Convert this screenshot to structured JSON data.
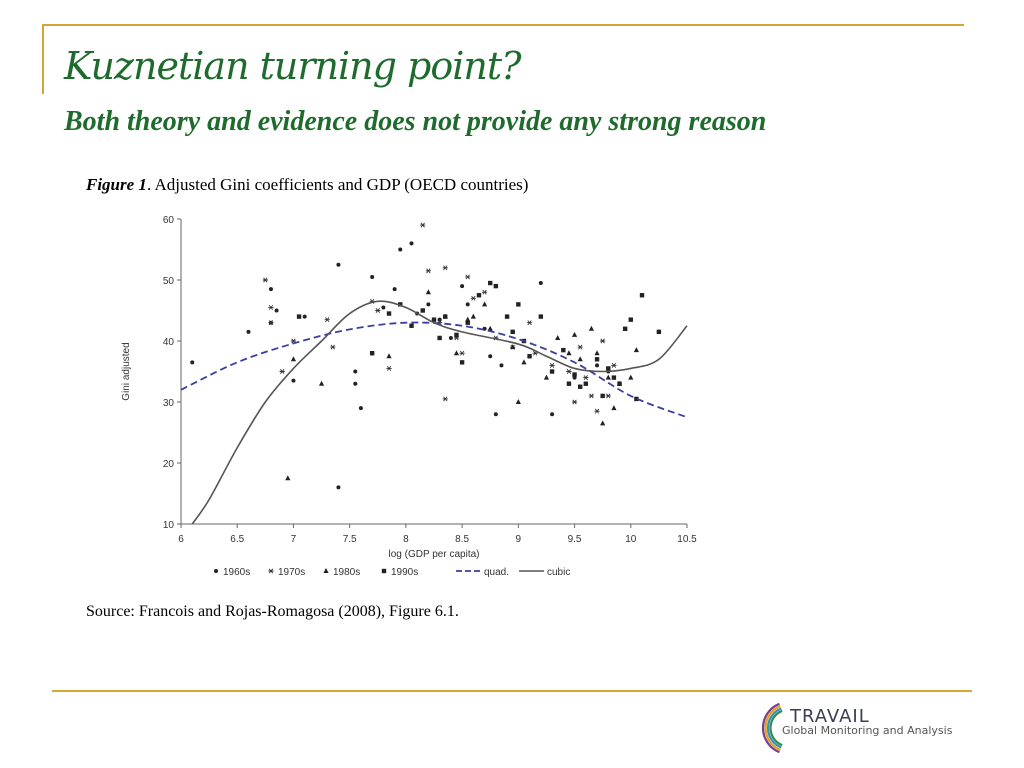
{
  "slide": {
    "title": "Kuznetian turning point?",
    "subtitle": "Both theory and evidence does not provide any strong reason",
    "caption_label": "Figure 1",
    "caption_text": ". Adjusted Gini coefficients and GDP (OECD countries)",
    "source": "Source: Francois and Rojas-Romagosa (2008), Figure 6.1."
  },
  "logo": {
    "name": "TRAVAIL",
    "tagline": "Global Monitoring and Analysis",
    "ring_colors": [
      "#7b3f8c",
      "#e0a020",
      "#3a8dbf",
      "#2f8f4e"
    ]
  },
  "chart_data": {
    "type": "scatter",
    "xlabel": "log (GDP per capita)",
    "ylabel": "Gini adjusted",
    "xlim": [
      6,
      10.5
    ],
    "ylim": [
      10,
      60
    ],
    "x_ticks": [
      "6",
      "6.5",
      "7",
      "7.5",
      "8",
      "8.5",
      "9",
      "9.5",
      "10",
      "10.5"
    ],
    "y_ticks": [
      "10",
      "20",
      "30",
      "40",
      "50",
      "60"
    ],
    "grid": false,
    "legend_position": "bottom",
    "series": [
      {
        "name": "1960s",
        "marker": "dot",
        "points": [
          [
            6.1,
            36.5
          ],
          [
            6.6,
            41.5
          ],
          [
            6.8,
            48.5
          ],
          [
            6.8,
            43
          ],
          [
            6.85,
            45
          ],
          [
            7.0,
            33.5
          ],
          [
            7.1,
            44
          ],
          [
            7.4,
            52.5
          ],
          [
            7.4,
            16
          ],
          [
            7.55,
            33
          ],
          [
            7.55,
            35
          ],
          [
            7.6,
            29
          ],
          [
            7.7,
            50.5
          ],
          [
            7.8,
            45.5
          ],
          [
            7.9,
            48.5
          ],
          [
            7.95,
            55
          ],
          [
            8.05,
            56
          ],
          [
            8.1,
            44.5
          ],
          [
            8.2,
            46
          ],
          [
            8.3,
            43.5
          ],
          [
            8.4,
            40.5
          ],
          [
            8.5,
            49
          ],
          [
            8.55,
            46
          ],
          [
            8.7,
            42
          ],
          [
            8.75,
            37.5
          ],
          [
            8.8,
            28
          ],
          [
            8.85,
            36
          ],
          [
            9.2,
            49.5
          ],
          [
            9.3,
            28
          ],
          [
            9.5,
            34
          ],
          [
            9.7,
            36
          ],
          [
            9.8,
            35
          ]
        ]
      },
      {
        "name": "1970s",
        "marker": "star",
        "points": [
          [
            6.75,
            50
          ],
          [
            6.8,
            45.5
          ],
          [
            6.8,
            43
          ],
          [
            6.9,
            35
          ],
          [
            7.0,
            40
          ],
          [
            7.3,
            43.5
          ],
          [
            7.35,
            39
          ],
          [
            7.7,
            46.5
          ],
          [
            7.75,
            45
          ],
          [
            7.85,
            35.5
          ],
          [
            8.15,
            59
          ],
          [
            8.2,
            51.5
          ],
          [
            8.3,
            43
          ],
          [
            8.35,
            30.5
          ],
          [
            8.35,
            52
          ],
          [
            8.45,
            40.5
          ],
          [
            8.5,
            38
          ],
          [
            8.55,
            50.5
          ],
          [
            8.6,
            47
          ],
          [
            8.7,
            48
          ],
          [
            8.8,
            40.5
          ],
          [
            8.95,
            39
          ],
          [
            9.1,
            43
          ],
          [
            9.15,
            38
          ],
          [
            9.3,
            36
          ],
          [
            9.45,
            35
          ],
          [
            9.5,
            30
          ],
          [
            9.55,
            39
          ],
          [
            9.6,
            34
          ],
          [
            9.65,
            31
          ],
          [
            9.7,
            28.5
          ],
          [
            9.75,
            40
          ],
          [
            9.8,
            31
          ],
          [
            9.85,
            36
          ]
        ]
      },
      {
        "name": "1980s",
        "marker": "triangle",
        "points": [
          [
            6.95,
            17.5
          ],
          [
            7.0,
            37
          ],
          [
            7.25,
            33
          ],
          [
            7.85,
            37.5
          ],
          [
            8.2,
            48
          ],
          [
            8.35,
            44
          ],
          [
            8.45,
            38
          ],
          [
            8.55,
            43.5
          ],
          [
            8.6,
            44
          ],
          [
            8.7,
            46
          ],
          [
            8.75,
            42
          ],
          [
            8.95,
            39
          ],
          [
            9.0,
            30
          ],
          [
            9.05,
            36.5
          ],
          [
            9.25,
            34
          ],
          [
            9.35,
            40.5
          ],
          [
            9.45,
            38
          ],
          [
            9.5,
            41
          ],
          [
            9.55,
            37
          ],
          [
            9.65,
            42
          ],
          [
            9.7,
            38
          ],
          [
            9.75,
            26.5
          ],
          [
            9.8,
            34
          ],
          [
            9.85,
            29
          ],
          [
            9.9,
            33
          ],
          [
            10.0,
            34
          ],
          [
            10.05,
            38.5
          ]
        ]
      },
      {
        "name": "1990s",
        "marker": "square",
        "points": [
          [
            7.05,
            44
          ],
          [
            7.7,
            38
          ],
          [
            7.85,
            44.5
          ],
          [
            7.95,
            46
          ],
          [
            8.05,
            42.5
          ],
          [
            8.15,
            45
          ],
          [
            8.25,
            43.5
          ],
          [
            8.3,
            40.5
          ],
          [
            8.35,
            44
          ],
          [
            8.45,
            41
          ],
          [
            8.5,
            36.5
          ],
          [
            8.55,
            43
          ],
          [
            8.65,
            47.5
          ],
          [
            8.75,
            49.5
          ],
          [
            8.8,
            49
          ],
          [
            8.9,
            44
          ],
          [
            8.95,
            41.5
          ],
          [
            9.0,
            46
          ],
          [
            9.05,
            40
          ],
          [
            9.1,
            37.5
          ],
          [
            9.2,
            44
          ],
          [
            9.3,
            35
          ],
          [
            9.4,
            38.5
          ],
          [
            9.45,
            33
          ],
          [
            9.5,
            34.5
          ],
          [
            9.55,
            32.5
          ],
          [
            9.6,
            33
          ],
          [
            9.7,
            37
          ],
          [
            9.75,
            31
          ],
          [
            9.8,
            35.5
          ],
          [
            9.85,
            34
          ],
          [
            9.9,
            33
          ],
          [
            9.95,
            42
          ],
          [
            10.0,
            43.5
          ],
          [
            10.05,
            30.5
          ],
          [
            10.1,
            47.5
          ],
          [
            10.25,
            41.5
          ]
        ]
      },
      {
        "name": "quad.",
        "marker": "dashed-line",
        "points": [
          [
            6,
            32
          ],
          [
            6.5,
            36.5
          ],
          [
            7,
            39.6
          ],
          [
            7.5,
            41.9
          ],
          [
            8,
            43
          ],
          [
            8.5,
            42.5
          ],
          [
            9,
            40.3
          ],
          [
            9.5,
            36.5
          ],
          [
            10,
            31
          ],
          [
            10.5,
            27.5
          ]
        ]
      },
      {
        "name": "cubic",
        "marker": "solid-line",
        "points": [
          [
            6.1,
            10
          ],
          [
            6.25,
            14
          ],
          [
            6.5,
            22.5
          ],
          [
            6.75,
            30
          ],
          [
            7,
            35.5
          ],
          [
            7.25,
            40
          ],
          [
            7.5,
            44.5
          ],
          [
            7.75,
            46.5
          ],
          [
            8,
            45.5
          ],
          [
            8.25,
            43
          ],
          [
            8.5,
            41.5
          ],
          [
            9,
            39.5
          ],
          [
            9.25,
            37.5
          ],
          [
            9.5,
            35.5
          ],
          [
            9.75,
            35
          ],
          [
            10,
            35.5
          ],
          [
            10.25,
            37
          ],
          [
            10.5,
            42.5
          ]
        ]
      }
    ]
  }
}
